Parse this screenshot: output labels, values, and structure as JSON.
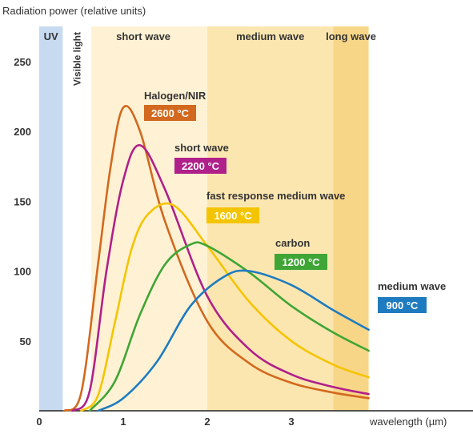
{
  "chart_data": {
    "type": "line",
    "ylabel": "Radiation power (relative units)",
    "xlabel": "wavelength (µm)",
    "xlim": [
      0,
      3.92
    ],
    "ylim": [
      0,
      270
    ],
    "x_ticks": [
      "0",
      "1",
      "2",
      "3"
    ],
    "y_ticks": [
      "50",
      "100",
      "150",
      "200",
      "250"
    ],
    "grid": false,
    "bands": [
      {
        "label": "UV",
        "range": [
          0,
          0.28
        ],
        "color": "#c8daf0"
      },
      {
        "label": "Visible light",
        "range": [
          0.28,
          0.62
        ],
        "color": "#ffffff"
      },
      {
        "label": "short wave",
        "range": [
          0.62,
          2.0
        ],
        "color": "#fff2d4"
      },
      {
        "label": "medium wave",
        "range": [
          2.0,
          3.5
        ],
        "color": "#fce6b0"
      },
      {
        "label": "long wave",
        "range": [
          3.5,
          3.92
        ],
        "color": "#f8d688"
      }
    ],
    "series": [
      {
        "name": "Halogen/NIR",
        "temperature": "2600 °C",
        "color": "#d2691e",
        "x": [
          0.3,
          0.5,
          0.7,
          0.85,
          1.0,
          1.2,
          1.5,
          2.0,
          2.5,
          3.0,
          3.5,
          3.92
        ],
        "y": [
          0,
          13,
          105,
          175,
          217,
          200,
          135,
          64,
          34,
          20,
          13,
          9
        ]
      },
      {
        "name": "short wave",
        "temperature": "2200 °C",
        "color": "#b0208a",
        "x": [
          0.4,
          0.6,
          0.8,
          1.0,
          1.2,
          1.5,
          2.0,
          2.5,
          3.0,
          3.5,
          3.92
        ],
        "y": [
          0,
          14,
          100,
          165,
          190,
          158,
          82,
          44,
          26,
          17,
          12
        ]
      },
      {
        "name": "fast response medium wave",
        "temperature": "1600 °C",
        "color": "#f5c400",
        "x": [
          0.5,
          0.7,
          0.9,
          1.1,
          1.3,
          1.6,
          2.0,
          2.5,
          3.0,
          3.5,
          3.92
        ],
        "y": [
          0,
          11,
          63,
          116,
          141,
          147,
          118,
          78,
          50,
          33,
          24
        ]
      },
      {
        "name": "carbon",
        "temperature": "1200 °C",
        "color": "#3fa535",
        "x": [
          0.6,
          0.9,
          1.2,
          1.5,
          1.8,
          2.0,
          2.5,
          3.0,
          3.5,
          3.92
        ],
        "y": [
          0,
          21,
          69,
          105,
          119,
          118,
          99,
          75,
          56,
          43
        ]
      },
      {
        "name": "medium wave",
        "temperature": "900 °C",
        "color": "#1f7bbf",
        "x": [
          0.7,
          1.0,
          1.4,
          1.8,
          2.2,
          2.5,
          3.0,
          3.5,
          3.92
        ],
        "y": [
          0,
          9,
          35,
          75,
          96,
          100,
          90,
          72,
          58
        ]
      }
    ]
  }
}
